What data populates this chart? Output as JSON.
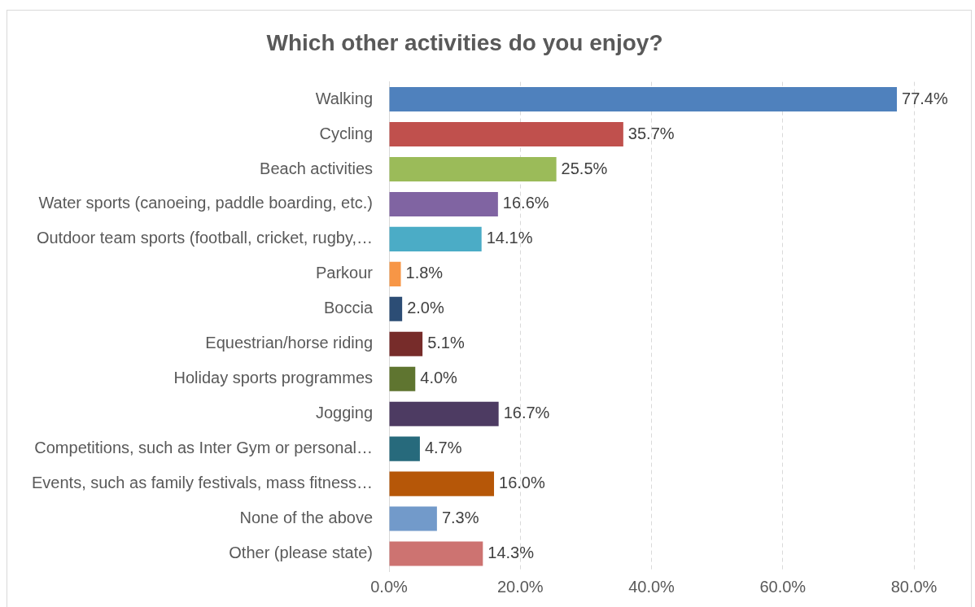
{
  "chart_data": {
    "type": "bar",
    "orientation": "horizontal",
    "title": "Which other activities do you enjoy?",
    "categories": [
      "Walking",
      "Cycling",
      "Beach activities",
      "Water sports (canoeing, paddle boarding, etc.)",
      "Outdoor team sports (football, cricket, rugby,…",
      "Parkour",
      "Boccia",
      "Equestrian/horse riding",
      "Holiday sports programmes",
      "Jogging",
      "Competitions, such as Inter Gym or personal…",
      "Events, such as family festivals, mass fitness…",
      "None of the above",
      "Other (please state)"
    ],
    "values": [
      77.4,
      35.7,
      25.5,
      16.6,
      14.1,
      1.8,
      2.0,
      5.1,
      4.0,
      16.7,
      4.7,
      16.0,
      7.3,
      14.3
    ],
    "colors": [
      "#4f81bd",
      "#c0504d",
      "#9bbb59",
      "#8064a2",
      "#4bacc6",
      "#f79646",
      "#2c4d75",
      "#772c2a",
      "#5f7530",
      "#4d3b62",
      "#276a7c",
      "#b65708",
      "#729aca",
      "#cd7371"
    ],
    "value_labels": [
      "77.4%",
      "35.7%",
      "25.5%",
      "16.6%",
      "14.1%",
      "1.8%",
      "2.0%",
      "5.1%",
      "4.0%",
      "16.7%",
      "4.7%",
      "16.0%",
      "7.3%",
      "14.3%"
    ],
    "xlim": [
      0,
      80
    ],
    "xticks": [
      {
        "value": 0,
        "label": "0.0%"
      },
      {
        "value": 20,
        "label": "20.0%"
      },
      {
        "value": 40,
        "label": "40.0%"
      },
      {
        "value": 60,
        "label": "60.0%"
      },
      {
        "value": 80,
        "label": "80.0%"
      }
    ],
    "grid": "x",
    "legend": false
  }
}
